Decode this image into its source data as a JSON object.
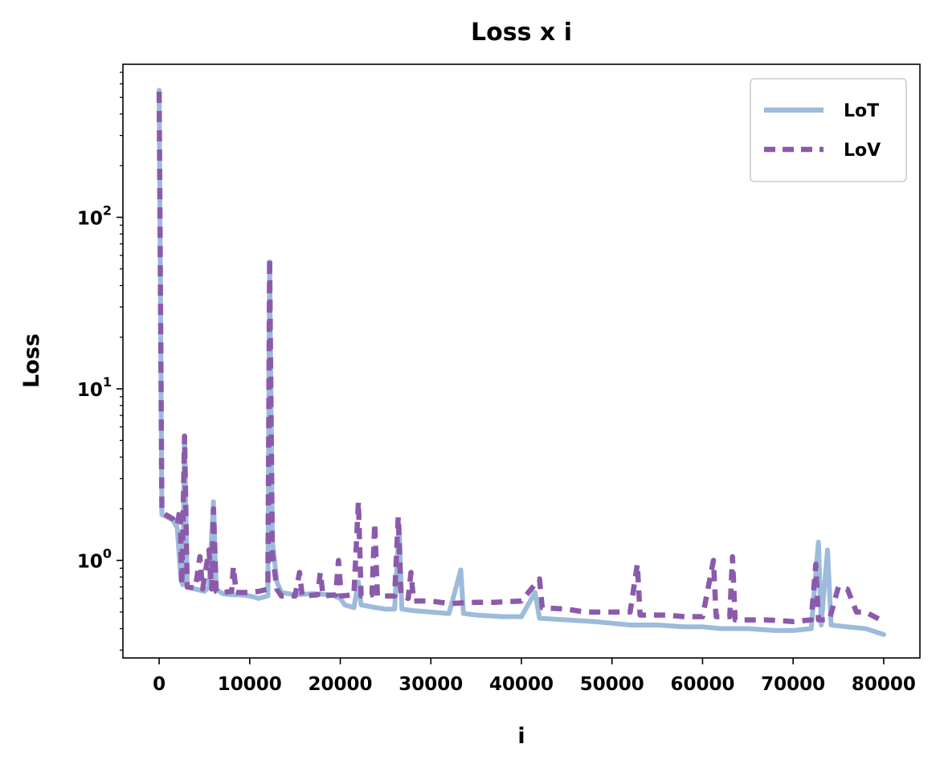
{
  "chart_data": {
    "type": "line",
    "title": "Loss x i",
    "xlabel": "i",
    "ylabel": "Loss",
    "yscale": "log",
    "xlim": [
      -4000,
      84000
    ],
    "ylim": [
      0.27,
      780
    ],
    "grid": false,
    "legend_position": "top-right",
    "x_ticks": [
      {
        "value": 0,
        "label": "0"
      },
      {
        "value": 10000,
        "label": "10000"
      },
      {
        "value": 20000,
        "label": "20000"
      },
      {
        "value": 30000,
        "label": "30000"
      },
      {
        "value": 40000,
        "label": "40000"
      },
      {
        "value": 50000,
        "label": "50000"
      },
      {
        "value": 60000,
        "label": "60000"
      },
      {
        "value": 70000,
        "label": "70000"
      },
      {
        "value": 80000,
        "label": "80000"
      }
    ],
    "y_ticks": [
      {
        "value": 1,
        "base": "10",
        "exp": "0"
      },
      {
        "value": 10,
        "base": "10",
        "exp": "1"
      },
      {
        "value": 100,
        "base": "10",
        "exp": "2"
      }
    ],
    "series": [
      {
        "name": "LoT",
        "color": "#9dbbda",
        "style": "solid",
        "points": [
          [
            0,
            550
          ],
          [
            300,
            1.85
          ],
          [
            1500,
            1.72
          ],
          [
            2000,
            1.55
          ],
          [
            2400,
            0.78
          ],
          [
            2600,
            0.72
          ],
          [
            2800,
            5.2
          ],
          [
            3100,
            0.7
          ],
          [
            4000,
            0.68
          ],
          [
            5000,
            0.66
          ],
          [
            5500,
            0.7
          ],
          [
            6000,
            2.2
          ],
          [
            6300,
            0.68
          ],
          [
            7000,
            0.64
          ],
          [
            8000,
            0.63
          ],
          [
            9000,
            0.63
          ],
          [
            10000,
            0.62
          ],
          [
            11000,
            0.6
          ],
          [
            12000,
            0.62
          ],
          [
            12200,
            55
          ],
          [
            12500,
            1.3
          ],
          [
            13000,
            0.75
          ],
          [
            13500,
            0.65
          ],
          [
            15000,
            0.63
          ],
          [
            17000,
            0.64
          ],
          [
            19000,
            0.63
          ],
          [
            20000,
            0.6
          ],
          [
            20500,
            0.55
          ],
          [
            21500,
            0.53
          ],
          [
            22000,
            0.75
          ],
          [
            22300,
            0.55
          ],
          [
            24000,
            0.53
          ],
          [
            25000,
            0.52
          ],
          [
            26000,
            0.52
          ],
          [
            26500,
            1.6
          ],
          [
            26800,
            0.52
          ],
          [
            28000,
            0.51
          ],
          [
            30000,
            0.5
          ],
          [
            32000,
            0.49
          ],
          [
            33300,
            0.88
          ],
          [
            33600,
            0.49
          ],
          [
            35000,
            0.48
          ],
          [
            38000,
            0.47
          ],
          [
            40000,
            0.47
          ],
          [
            41500,
            0.65
          ],
          [
            42000,
            0.46
          ],
          [
            45000,
            0.45
          ],
          [
            48000,
            0.44
          ],
          [
            50000,
            0.43
          ],
          [
            52000,
            0.42
          ],
          [
            55000,
            0.42
          ],
          [
            58000,
            0.41
          ],
          [
            60000,
            0.41
          ],
          [
            62000,
            0.4
          ],
          [
            65000,
            0.4
          ],
          [
            68000,
            0.39
          ],
          [
            70000,
            0.39
          ],
          [
            72000,
            0.4
          ],
          [
            72800,
            1.28
          ],
          [
            73100,
            0.42
          ],
          [
            73800,
            1.15
          ],
          [
            74200,
            0.42
          ],
          [
            76000,
            0.41
          ],
          [
            78000,
            0.4
          ],
          [
            80000,
            0.37
          ]
        ]
      },
      {
        "name": "LoV",
        "color": "#8b5aab",
        "style": "dashed",
        "points": [
          [
            0,
            540
          ],
          [
            300,
            1.9
          ],
          [
            1500,
            1.75
          ],
          [
            2000,
            1.6
          ],
          [
            2300,
            2.0
          ],
          [
            2500,
            0.72
          ],
          [
            2800,
            5.3
          ],
          [
            3100,
            0.7
          ],
          [
            4000,
            0.69
          ],
          [
            4500,
            1.05
          ],
          [
            4800,
            0.68
          ],
          [
            5500,
            1.15
          ],
          [
            5800,
            0.68
          ],
          [
            6000,
            2.0
          ],
          [
            6300,
            0.66
          ],
          [
            7000,
            0.65
          ],
          [
            8000,
            0.66
          ],
          [
            8200,
            0.92
          ],
          [
            8500,
            0.65
          ],
          [
            10000,
            0.65
          ],
          [
            11000,
            0.66
          ],
          [
            12000,
            0.68
          ],
          [
            12200,
            58
          ],
          [
            12500,
            1.1
          ],
          [
            13000,
            0.68
          ],
          [
            13500,
            0.62
          ],
          [
            15000,
            0.62
          ],
          [
            15500,
            0.85
          ],
          [
            15800,
            0.62
          ],
          [
            17500,
            0.63
          ],
          [
            17800,
            0.85
          ],
          [
            18100,
            0.62
          ],
          [
            19500,
            0.63
          ],
          [
            19800,
            1.0
          ],
          [
            20100,
            0.62
          ],
          [
            21500,
            0.63
          ],
          [
            22000,
            2.2
          ],
          [
            22300,
            0.62
          ],
          [
            23500,
            0.63
          ],
          [
            23800,
            1.65
          ],
          [
            24100,
            0.62
          ],
          [
            26000,
            0.62
          ],
          [
            26400,
            1.8
          ],
          [
            26700,
            0.62
          ],
          [
            27500,
            0.6
          ],
          [
            27800,
            0.85
          ],
          [
            28100,
            0.58
          ],
          [
            30000,
            0.58
          ],
          [
            32000,
            0.56
          ],
          [
            35000,
            0.57
          ],
          [
            37000,
            0.57
          ],
          [
            40000,
            0.58
          ],
          [
            42000,
            0.78
          ],
          [
            42300,
            0.53
          ],
          [
            45000,
            0.52
          ],
          [
            47000,
            0.5
          ],
          [
            50000,
            0.5
          ],
          [
            52000,
            0.5
          ],
          [
            52800,
            0.95
          ],
          [
            53100,
            0.48
          ],
          [
            56000,
            0.48
          ],
          [
            58000,
            0.47
          ],
          [
            60000,
            0.47
          ],
          [
            61200,
            1.0
          ],
          [
            61500,
            0.47
          ],
          [
            63000,
            0.47
          ],
          [
            63300,
            1.05
          ],
          [
            63600,
            0.45
          ],
          [
            65000,
            0.45
          ],
          [
            67000,
            0.45
          ],
          [
            70000,
            0.44
          ],
          [
            72000,
            0.45
          ],
          [
            72500,
            0.95
          ],
          [
            72800,
            0.45
          ],
          [
            74000,
            0.45
          ],
          [
            75000,
            0.7
          ],
          [
            76000,
            0.68
          ],
          [
            77000,
            0.5
          ],
          [
            78000,
            0.5
          ],
          [
            80000,
            0.44
          ]
        ]
      }
    ]
  }
}
